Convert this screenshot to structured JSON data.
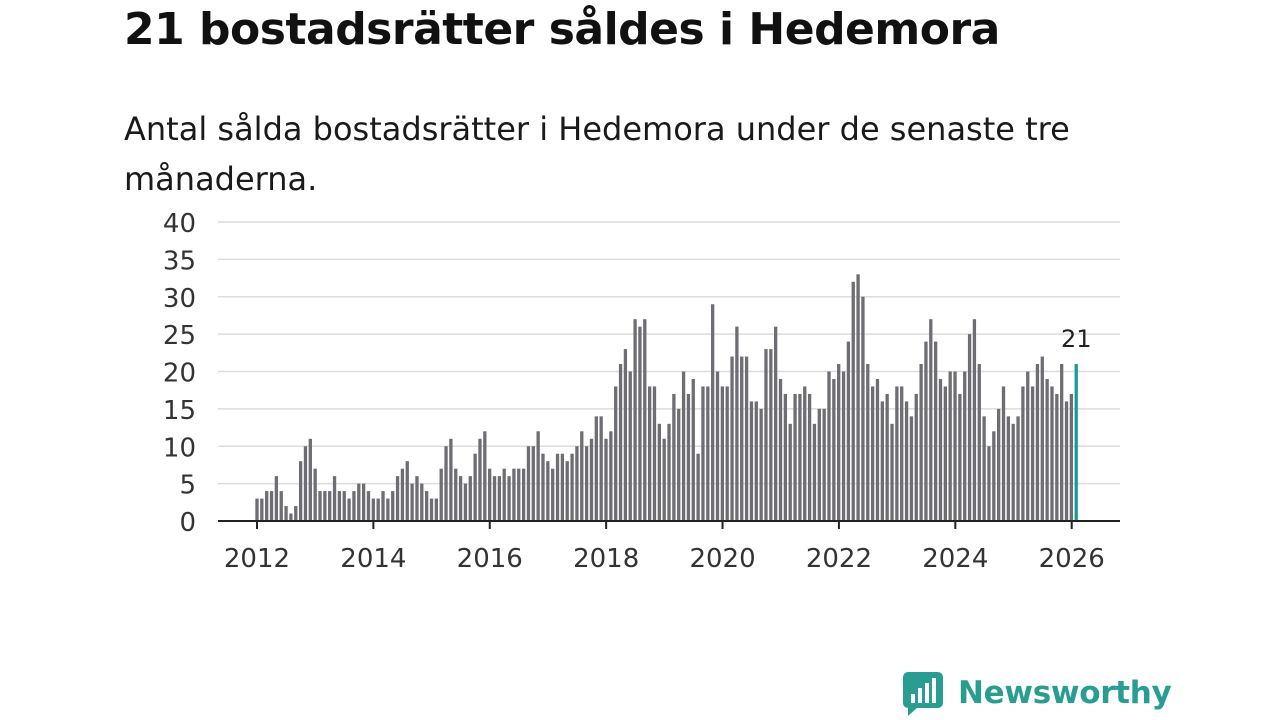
{
  "title": "21 bostadsrätter såldes i Hedemora",
  "subtitle": "Antal sålda bostadsrätter i Hedemora under de senaste tre månaderna.",
  "brand": {
    "name": "Newsworthy",
    "accent": "#2a9d92"
  },
  "chart_data": {
    "type": "bar",
    "title": "21 bostadsrätter såldes i Hedemora",
    "subtitle": "Antal sålda bostadsrätter i Hedemora under de senaste tre månaderna.",
    "xlabel": "",
    "ylabel": "",
    "x_start": 2012.0,
    "x_step": 0.0833,
    "xlim": [
      2011.33,
      2026.83
    ],
    "ylim": [
      0,
      40
    ],
    "y_ticks": [
      0,
      5,
      10,
      15,
      20,
      25,
      30,
      35,
      40
    ],
    "x_ticks": [
      2012,
      2014,
      2016,
      2018,
      2020,
      2022,
      2024,
      2026
    ],
    "grid": true,
    "bar_color": "#6d6d73",
    "highlight_color": "#1a9c92",
    "highlight_label": "21",
    "values": [
      3,
      3,
      4,
      4,
      6,
      4,
      2,
      1,
      2,
      8,
      10,
      11,
      7,
      4,
      4,
      4,
      6,
      4,
      4,
      3,
      4,
      5,
      5,
      4,
      3,
      3,
      4,
      3,
      4,
      6,
      7,
      8,
      5,
      6,
      5,
      4,
      3,
      3,
      7,
      10,
      11,
      7,
      6,
      5,
      6,
      9,
      11,
      12,
      7,
      6,
      6,
      7,
      6,
      7,
      7,
      7,
      10,
      10,
      12,
      9,
      8,
      7,
      9,
      9,
      8,
      9,
      10,
      12,
      10,
      11,
      14,
      14,
      11,
      12,
      18,
      21,
      23,
      20,
      27,
      26,
      27,
      18,
      18,
      13,
      11,
      13,
      17,
      15,
      20,
      17,
      19,
      9,
      18,
      18,
      29,
      20,
      18,
      18,
      22,
      26,
      22,
      22,
      16,
      16,
      15,
      23,
      23,
      26,
      19,
      17,
      13,
      17,
      17,
      18,
      17,
      13,
      15,
      15,
      20,
      19,
      21,
      20,
      24,
      32,
      33,
      30,
      21,
      18,
      19,
      16,
      17,
      13,
      18,
      18,
      16,
      14,
      17,
      21,
      24,
      27,
      24,
      19,
      18,
      20,
      20,
      17,
      20,
      25,
      27,
      21,
      14,
      10,
      12,
      15,
      18,
      14,
      13,
      14,
      18,
      20,
      18,
      21,
      22,
      19,
      18,
      17,
      21,
      16,
      17,
      21
    ]
  }
}
